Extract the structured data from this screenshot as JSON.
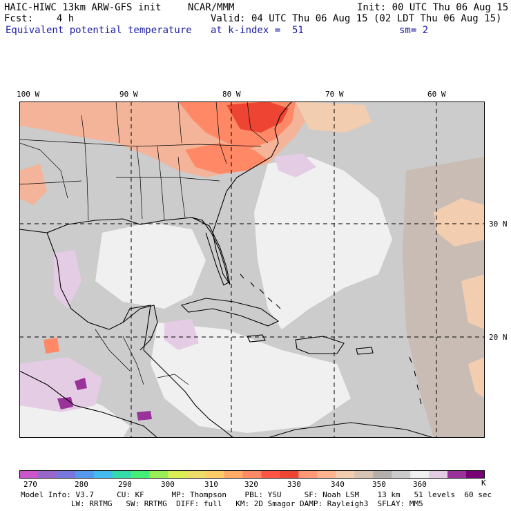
{
  "header": {
    "model_line": "HAIC-HIWC 13km ARW-GFS init",
    "org": "NCAR/MMM",
    "init": "Init: 00 UTC Thu 06 Aug 15",
    "fcst": "Fcst:    4 h",
    "valid": "Valid: 04 UTC Thu 06 Aug 15 (02 LDT Thu 06 Aug 15)",
    "field": "Equivalent potential temperature",
    "level": "at k-index =  51",
    "smooth": "sm= 2"
  },
  "lon_labels": [
    "100 W",
    "90 W",
    "80 W",
    "70 W",
    "60 W"
  ],
  "lat_labels": [
    "30 N",
    "20 N"
  ],
  "colorbar": {
    "colors": [
      "#cc55cc",
      "#9966cc",
      "#7777dd",
      "#5599ee",
      "#44bbee",
      "#33ddaa",
      "#44ee77",
      "#99ee55",
      "#ddee55",
      "#eedd66",
      "#ffcc66",
      "#ffaa66",
      "#ff8866",
      "#ff5544",
      "#ee4433",
      "#ff9977",
      "#ffb390",
      "#f3cdb0",
      "#d8c3b5",
      "#b4afaa",
      "#cccccc",
      "#f0f0f0",
      "#e5cce5",
      "#993399",
      "#770077"
    ],
    "tick_labels": [
      "270",
      "280",
      "290",
      "300",
      "310",
      "320",
      "330",
      "340",
      "350",
      "360",
      "K"
    ]
  },
  "footer": {
    "line1": "Model Info: V3.7     CU: KF      MP: Thompson    PBL: YSU     SF: Noah LSM    13 km   51 levels  60 sec",
    "line2": "           LW: RRTMG   SW: RRTMG  DIFF: full   KM: 2D Smagor DAMP: Rayleigh3  SFLAY: MM5"
  }
}
